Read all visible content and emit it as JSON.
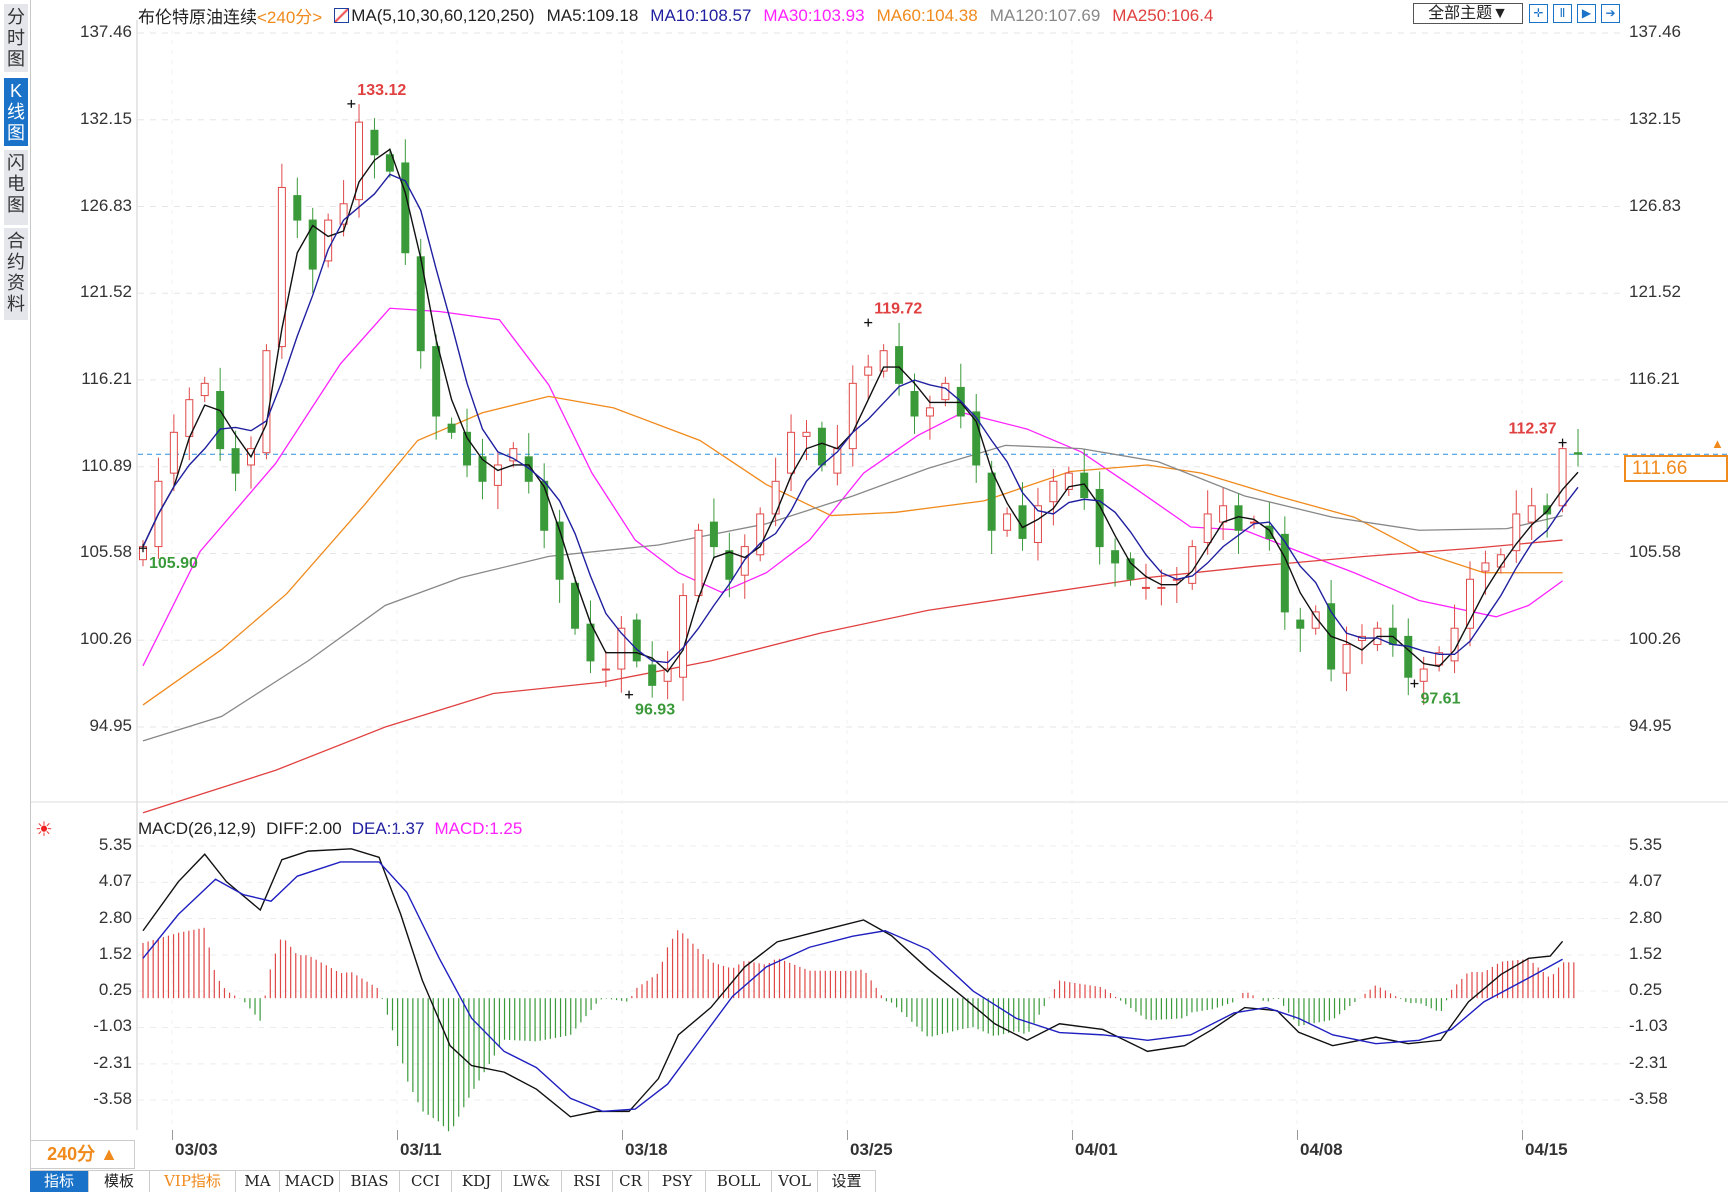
{
  "left_tabs": [
    {
      "label": "分时图",
      "active": false
    },
    {
      "label": "K线图",
      "active": true
    },
    {
      "label": "闪电图",
      "active": false
    },
    {
      "label": "合约资料",
      "active": false
    }
  ],
  "header": {
    "title": "布伦特原油连续",
    "period": "<240分>",
    "ma_params": "MA(5,10,30,60,120,250)",
    "ma_values": [
      {
        "label": "MA5:109.18",
        "color": "#222222"
      },
      {
        "label": "MA10:108.57",
        "color": "#2020a0"
      },
      {
        "label": "MA30:103.93",
        "color": "#ff22ff"
      },
      {
        "label": "MA60:104.38",
        "color": "#f08a1c"
      },
      {
        "label": "MA120:107.69",
        "color": "#888888"
      },
      {
        "label": "MA250:106.4",
        "color": "#e04040"
      }
    ],
    "theme_button": "全部主题▼",
    "icon_buttons": [
      "crosshair-icon",
      "zoom-range-icon",
      "play-forward-icon",
      "go-latest-icon"
    ],
    "icon_glyphs": [
      "✛",
      "Ⅱ",
      "▶",
      "➔"
    ]
  },
  "price_axis": {
    "labels": [
      "137.46",
      "132.15",
      "126.83",
      "121.52",
      "116.21",
      "110.89",
      "105.58",
      "100.26",
      "94.95"
    ],
    "current_price": "111.66",
    "up_color": "#e04848",
    "down_color": "#3a9a3a"
  },
  "macd": {
    "title": "MACD(26,12,9)",
    "diff": "DIFF:2.00",
    "dea": "DEA:1.37",
    "macd": "MACD:1.25",
    "axis_labels": [
      "5.35",
      "4.07",
      "2.80",
      "1.52",
      "0.25",
      "-1.03",
      "-2.31",
      "-3.58"
    ]
  },
  "dates": [
    "03/03",
    "03/11",
    "03/18",
    "03/25",
    "04/01",
    "04/08",
    "04/15"
  ],
  "period_selector": "240分 ▲",
  "bottom_tabs": [
    "指标",
    "模板",
    "VIP指标",
    "MA",
    "MACD",
    "BIAS",
    "CCI",
    "KDJ",
    "LW&",
    "RSI",
    "CR",
    "PSY",
    "BOLL",
    "VOL",
    "设置"
  ],
  "chart_data": {
    "type": "candlestick",
    "title": "布伦特原油连续 240分",
    "ylim": [
      94.95,
      137.46
    ],
    "x_max": 93,
    "closes": [
      106,
      110,
      113,
      115,
      116,
      112,
      110.5,
      112,
      118,
      128,
      126,
      123,
      126,
      127,
      132,
      130,
      129,
      124,
      118,
      114,
      113,
      111,
      110,
      111,
      112,
      110,
      107,
      104,
      101,
      99,
      98.5,
      101,
      99,
      97.5,
      98.5,
      103,
      107,
      106,
      104,
      106,
      108,
      110,
      113,
      113,
      111,
      112,
      116,
      117,
      118,
      116,
      114,
      114.5,
      116,
      114,
      111,
      107,
      108,
      106.5,
      108.5,
      110,
      110.5,
      109,
      106,
      105,
      104,
      103.5,
      103.5,
      104,
      106,
      108,
      108.5,
      107,
      107.5,
      106.5,
      102,
      101,
      102,
      98.5,
      100,
      100.5,
      101,
      100,
      98,
      98.5,
      99.5,
      101,
      104,
      105,
      105.5,
      108,
      108.5,
      108,
      112,
      111.66
    ],
    "annotations": [
      {
        "index": 13.5,
        "value": 133.12,
        "label": "133.12",
        "type": "high"
      },
      {
        "index": 47,
        "value": 119.72,
        "label": "119.72",
        "type": "high"
      },
      {
        "index": 92,
        "value": 112.37,
        "label": "112.37",
        "type": "high"
      },
      {
        "index": 0,
        "value": 105.9,
        "label": "105.90",
        "type": "low"
      },
      {
        "index": 31.5,
        "value": 96.93,
        "label": "96.93",
        "type": "low"
      },
      {
        "index": 82.4,
        "value": 97.61,
        "label": "97.61",
        "type": "low"
      }
    ],
    "ma_series": [
      {
        "name": "MA30",
        "color": "#ff22ff",
        "points": [
          [
            0,
            98.7
          ],
          [
            3.7,
            105.7
          ],
          [
            8.6,
            111.1
          ],
          [
            12.8,
            117.2
          ],
          [
            16,
            120.6
          ],
          [
            19.2,
            120.4
          ],
          [
            23.1,
            119.9
          ],
          [
            26.3,
            115.9
          ],
          [
            29.1,
            110.5
          ],
          [
            31.9,
            106.4
          ],
          [
            34.7,
            104.4
          ],
          [
            37.5,
            103.2
          ],
          [
            40.4,
            104.4
          ],
          [
            43.2,
            106.4
          ],
          [
            46.7,
            110.5
          ],
          [
            50.2,
            112.8
          ],
          [
            53.1,
            114.2
          ],
          [
            57.3,
            113.2
          ],
          [
            60.8,
            111.8
          ],
          [
            64.4,
            109.5
          ],
          [
            67.9,
            107.2
          ],
          [
            71.4,
            107
          ],
          [
            74.9,
            105.7
          ],
          [
            78.5,
            104.4
          ],
          [
            82.7,
            102.7
          ],
          [
            87.7,
            101.7
          ],
          [
            89.8,
            102.4
          ],
          [
            92,
            103.9
          ]
        ]
      },
      {
        "name": "MA60",
        "color": "#f08a1c",
        "points": [
          [
            0,
            96.3
          ],
          [
            5.1,
            99.7
          ],
          [
            9.3,
            103.1
          ],
          [
            14.3,
            108.5
          ],
          [
            17.8,
            112.5
          ],
          [
            22,
            114.2
          ],
          [
            26.3,
            115.2
          ],
          [
            30.5,
            114.5
          ],
          [
            36.1,
            112.5
          ],
          [
            40.4,
            109.8
          ],
          [
            44.6,
            107.9
          ],
          [
            48.8,
            108.1
          ],
          [
            54.5,
            108.8
          ],
          [
            60.1,
            110.6
          ],
          [
            65.1,
            111
          ],
          [
            68.6,
            110.5
          ],
          [
            73.5,
            109.1
          ],
          [
            78.5,
            107.8
          ],
          [
            82.7,
            105.7
          ],
          [
            86.9,
            104.4
          ],
          [
            92,
            104.4
          ]
        ]
      },
      {
        "name": "MA120",
        "color": "#888888",
        "points": [
          [
            0,
            94.1
          ],
          [
            5.1,
            95.6
          ],
          [
            10.7,
            99
          ],
          [
            15.7,
            102.4
          ],
          [
            20.6,
            104.1
          ],
          [
            26.3,
            105.4
          ],
          [
            33.4,
            106.1
          ],
          [
            40.4,
            107.4
          ],
          [
            46,
            109.1
          ],
          [
            50.9,
            110.8
          ],
          [
            55.9,
            112.2
          ],
          [
            60.8,
            112
          ],
          [
            65.8,
            111.2
          ],
          [
            71.4,
            109.1
          ],
          [
            77.1,
            107.8
          ],
          [
            82.7,
            107
          ],
          [
            88.4,
            107.1
          ],
          [
            92,
            107.9
          ]
        ]
      },
      {
        "name": "MA250",
        "color": "#e04040",
        "points": [
          [
            0,
            89.7
          ],
          [
            8.6,
            92.3
          ],
          [
            15.7,
            94.95
          ],
          [
            22.7,
            97
          ],
          [
            29.8,
            97.7
          ],
          [
            36.8,
            99
          ],
          [
            43.9,
            100.7
          ],
          [
            50.9,
            102.1
          ],
          [
            58,
            103.1
          ],
          [
            65.1,
            104.1
          ],
          [
            72.1,
            104.8
          ],
          [
            79.2,
            105.4
          ],
          [
            86.2,
            105.9
          ],
          [
            92,
            106.4
          ]
        ]
      }
    ],
    "macd_ylim": [
      -3.58,
      5.35
    ],
    "diff": [
      [
        0,
        2.37
      ],
      [
        2.3,
        4.1
      ],
      [
        4,
        5.06
      ],
      [
        5.4,
        4.1
      ],
      [
        7.6,
        3.1
      ],
      [
        9,
        4.87
      ],
      [
        10.7,
        5.17
      ],
      [
        13.5,
        5.25
      ],
      [
        15.3,
        4.95
      ],
      [
        16.7,
        2.95
      ],
      [
        18.1,
        0.63
      ],
      [
        19.9,
        -1.67
      ],
      [
        21.3,
        -2.37
      ],
      [
        23.4,
        -2.6
      ],
      [
        25.5,
        -3.2
      ],
      [
        27.7,
        -4.17
      ],
      [
        29.4,
        -3.98
      ],
      [
        31.5,
        -3.98
      ],
      [
        33.4,
        -2.83
      ],
      [
        34.7,
        -1.29
      ],
      [
        36.8,
        -0.33
      ],
      [
        39,
        1.1
      ],
      [
        41.1,
        1.98
      ],
      [
        43.9,
        2.37
      ],
      [
        46.7,
        2.75
      ],
      [
        48.5,
        2.2
      ],
      [
        50.9,
        1.02
      ],
      [
        53.1,
        0.06
      ],
      [
        55.2,
        -0.9
      ],
      [
        57.3,
        -1.48
      ],
      [
        59.4,
        -0.9
      ],
      [
        62.2,
        -1.1
      ],
      [
        65.1,
        -1.87
      ],
      [
        67.5,
        -1.67
      ],
      [
        69.3,
        -1.1
      ],
      [
        71.4,
        -0.33
      ],
      [
        73.5,
        -0.44
      ],
      [
        74.9,
        -1.2
      ],
      [
        77.1,
        -1.67
      ],
      [
        79.9,
        -1.37
      ],
      [
        82,
        -1.6
      ],
      [
        84.1,
        -1.48
      ],
      [
        85.9,
        -0.13
      ],
      [
        88,
        0.83
      ],
      [
        89.8,
        1.4
      ],
      [
        91.2,
        1.48
      ],
      [
        92,
        2.0
      ]
    ],
    "dea": [
      [
        0,
        1.4
      ],
      [
        2.3,
        2.95
      ],
      [
        4.7,
        4.18
      ],
      [
        6.5,
        3.64
      ],
      [
        8.3,
        3.41
      ],
      [
        10,
        4.29
      ],
      [
        12.8,
        4.79
      ],
      [
        15.3,
        4.79
      ],
      [
        17.1,
        3.72
      ],
      [
        19.2,
        1.4
      ],
      [
        21.3,
        -0.71
      ],
      [
        23.4,
        -1.87
      ],
      [
        25.5,
        -2.44
      ],
      [
        27.7,
        -3.52
      ],
      [
        29.8,
        -3.98
      ],
      [
        31.9,
        -3.9
      ],
      [
        34,
        -3.02
      ],
      [
        36.1,
        -1.48
      ],
      [
        38.2,
        0.06
      ],
      [
        40.4,
        1.1
      ],
      [
        43.2,
        1.79
      ],
      [
        46,
        2.18
      ],
      [
        48.1,
        2.37
      ],
      [
        50.9,
        1.71
      ],
      [
        53.8,
        0.25
      ],
      [
        56.6,
        -0.71
      ],
      [
        59.4,
        -1.21
      ],
      [
        62.2,
        -1.29
      ],
      [
        65.1,
        -1.48
      ],
      [
        67.9,
        -1.29
      ],
      [
        70.7,
        -0.52
      ],
      [
        72.8,
        -0.33
      ],
      [
        74.9,
        -0.71
      ],
      [
        77.1,
        -1.29
      ],
      [
        79.9,
        -1.6
      ],
      [
        82.7,
        -1.48
      ],
      [
        84.8,
        -1.1
      ],
      [
        86.9,
        -0.13
      ],
      [
        89.8,
        0.71
      ],
      [
        92,
        1.37
      ]
    ]
  }
}
